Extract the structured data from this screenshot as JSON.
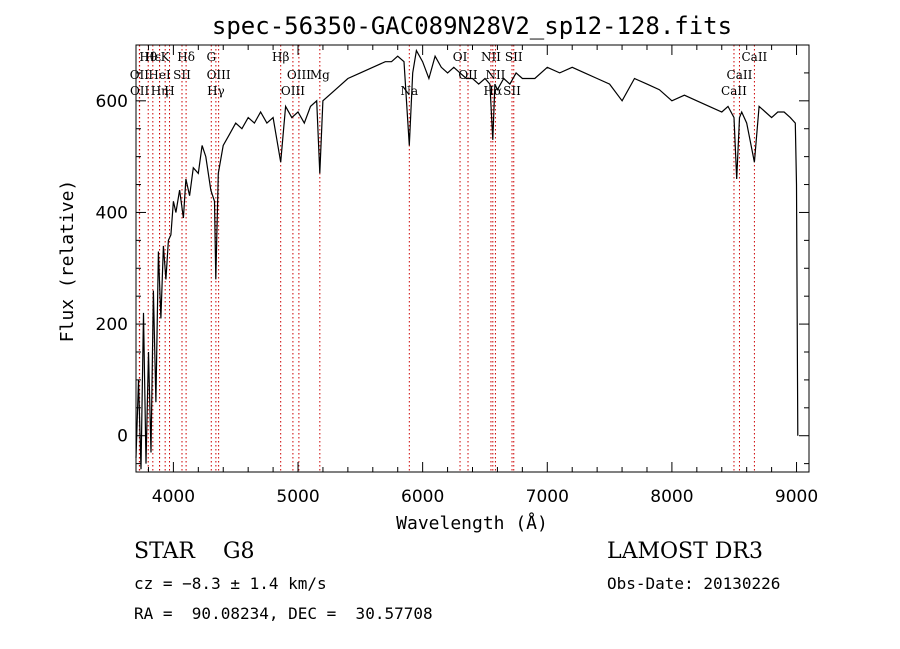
{
  "chart_data": {
    "type": "line",
    "title": "spec-56350-GAC089N28V2_sp12-128.fits",
    "xlabel": "Wavelength (Å)",
    "ylabel": "Flux (relative)",
    "xlim": [
      3700,
      9100
    ],
    "ylim": [
      -65,
      700
    ],
    "xticks": [
      4000,
      5000,
      6000,
      7000,
      8000,
      9000
    ],
    "yticks": [
      0,
      200,
      400,
      600
    ],
    "grid": false,
    "line_color": "#000000",
    "marker_color": "#cc0000",
    "spectrum": {
      "x": [
        3700,
        3720,
        3740,
        3760,
        3780,
        3800,
        3820,
        3840,
        3860,
        3880,
        3900,
        3920,
        3940,
        3960,
        3980,
        4000,
        4020,
        4050,
        4080,
        4100,
        4130,
        4160,
        4200,
        4230,
        4260,
        4300,
        4330,
        4340,
        4360,
        4400,
        4450,
        4500,
        4550,
        4600,
        4650,
        4700,
        4750,
        4800,
        4861,
        4900,
        4950,
        5000,
        5050,
        5100,
        5150,
        5175,
        5200,
        5300,
        5400,
        5500,
        5600,
        5700,
        5750,
        5800,
        5850,
        5893,
        5920,
        5950,
        6000,
        6050,
        6100,
        6150,
        6200,
        6250,
        6300,
        6350,
        6400,
        6450,
        6500,
        6540,
        6563,
        6580,
        6600,
        6650,
        6700,
        6750,
        6800,
        6900,
        7000,
        7100,
        7200,
        7300,
        7400,
        7500,
        7600,
        7700,
        7800,
        7900,
        8000,
        8100,
        8200,
        8300,
        8400,
        8450,
        8498,
        8520,
        8542,
        8560,
        8600,
        8662,
        8700,
        8750,
        8800,
        8850,
        8900,
        8950,
        8990,
        9000,
        9010
      ],
      "y": [
        -40,
        100,
        -60,
        220,
        -50,
        150,
        -30,
        260,
        60,
        330,
        210,
        340,
        280,
        350,
        360,
        420,
        400,
        440,
        390,
        460,
        430,
        480,
        470,
        520,
        500,
        440,
        420,
        280,
        470,
        520,
        540,
        560,
        550,
        570,
        560,
        580,
        560,
        570,
        490,
        590,
        570,
        580,
        560,
        590,
        600,
        470,
        600,
        620,
        640,
        650,
        660,
        670,
        670,
        680,
        670,
        520,
        650,
        690,
        670,
        640,
        680,
        660,
        650,
        660,
        650,
        640,
        640,
        630,
        640,
        630,
        530,
        630,
        620,
        640,
        630,
        650,
        640,
        640,
        660,
        650,
        660,
        650,
        640,
        630,
        600,
        640,
        630,
        620,
        600,
        610,
        600,
        590,
        580,
        590,
        570,
        460,
        570,
        580,
        560,
        490,
        590,
        580,
        570,
        580,
        580,
        570,
        560,
        450,
        0
      ]
    },
    "lines": [
      {
        "label": "Hθ",
        "x": 3798
      },
      {
        "label": "OII",
        "x": 3727
      },
      {
        "label": "OII",
        "x": 3729
      },
      {
        "label": "Hε",
        "x": 3835
      },
      {
        "label": "HeI",
        "x": 3889
      },
      {
        "label": "Hη",
        "x": 3889
      },
      {
        "label": "K",
        "x": 3934
      },
      {
        "label": "SII",
        "x": 4069
      },
      {
        "label": "H",
        "x": 3969
      },
      {
        "label": "Hδ",
        "x": 4102
      },
      {
        "label": "OIII",
        "x": 4363
      },
      {
        "label": "Hγ",
        "x": 4341
      },
      {
        "label": "G",
        "x": 4304
      },
      {
        "label": "OIII",
        "x": 5007
      },
      {
        "label": "OIII",
        "x": 4959
      },
      {
        "label": "Hβ",
        "x": 4861
      },
      {
        "label": "Mg",
        "x": 5175
      },
      {
        "label": "Na",
        "x": 5893
      },
      {
        "label": "OI",
        "x": 6300
      },
      {
        "label": "OII",
        "x": 6364
      },
      {
        "label": "Hα",
        "x": 6563
      },
      {
        "label": "NII",
        "x": 6548
      },
      {
        "label": "NII",
        "x": 6584
      },
      {
        "label": "SII",
        "x": 6717
      },
      {
        "label": "SII",
        "x": 6731
      },
      {
        "label": "CaII",
        "x": 8542
      },
      {
        "label": "CaII",
        "x": 8498
      },
      {
        "label": "CaII",
        "x": 8662
      }
    ]
  },
  "info": {
    "class_text": "STAR    G8",
    "survey": "LAMOST DR3",
    "cz": "cz = −8.3 ± 1.4 km/s",
    "obs_date": "Obs-Date: 20130226",
    "coords": "RA =  90.08234, DEC =  30.57708"
  }
}
